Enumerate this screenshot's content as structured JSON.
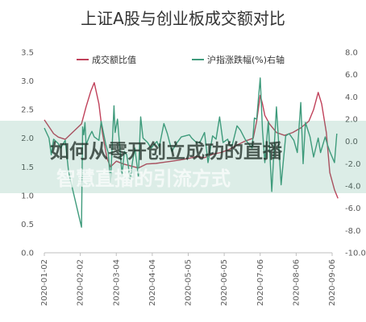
{
  "chart_data": {
    "type": "line",
    "title": "上证A股与创业板成交额对比",
    "xlabel": "",
    "ylabel": "",
    "x_ticks": [
      "2020-01-02",
      "2020-02-02",
      "2020-03-04",
      "2020-04-04",
      "2020-05-05",
      "2020-06-05",
      "2020-07-06",
      "2020-08-06",
      "2020-09-06"
    ],
    "y_left": {
      "lim": [
        0.0,
        3.5
      ],
      "ticks": [
        "0.0",
        "0.5",
        "1.0",
        "1.5",
        "2.0",
        "2.5",
        "3.0",
        "3.5"
      ]
    },
    "y_right": {
      "lim": [
        -10.0,
        8.0
      ],
      "ticks": [
        "-10.0",
        "-8.0",
        "-6.0",
        "-4.0",
        "-2.0",
        "0.0",
        "2.0",
        "4.0",
        "6.0",
        "8.0"
      ]
    },
    "grid": false,
    "legend_position": "top",
    "series": [
      {
        "name": "成交额比值",
        "axis": "left",
        "color": "#c0415a",
        "points": [
          [
            "2020-01-02",
            2.32
          ],
          [
            "2020-01-06",
            2.2
          ],
          [
            "2020-01-10",
            2.08
          ],
          [
            "2020-01-14",
            2.02
          ],
          [
            "2020-01-20",
            1.98
          ],
          [
            "2020-02-03",
            2.25
          ],
          [
            "2020-02-07",
            2.55
          ],
          [
            "2020-02-11",
            2.82
          ],
          [
            "2020-02-14",
            2.97
          ],
          [
            "2020-02-18",
            2.6
          ],
          [
            "2020-02-21",
            2.1
          ],
          [
            "2020-02-25",
            1.65
          ],
          [
            "2020-02-28",
            1.5
          ],
          [
            "2020-03-04",
            1.6
          ],
          [
            "2020-03-10",
            1.55
          ],
          [
            "2020-03-16",
            1.52
          ],
          [
            "2020-03-23",
            1.48
          ],
          [
            "2020-03-30",
            1.55
          ],
          [
            "2020-04-07",
            1.56
          ],
          [
            "2020-04-14",
            1.58
          ],
          [
            "2020-04-21",
            1.6
          ],
          [
            "2020-04-28",
            1.62
          ],
          [
            "2020-05-06",
            1.65
          ],
          [
            "2020-05-12",
            1.68
          ],
          [
            "2020-05-19",
            1.66
          ],
          [
            "2020-05-26",
            1.72
          ],
          [
            "2020-06-02",
            1.75
          ],
          [
            "2020-06-09",
            1.8
          ],
          [
            "2020-06-16",
            1.88
          ],
          [
            "2020-06-23",
            1.95
          ],
          [
            "2020-06-30",
            2.0
          ],
          [
            "2020-07-03",
            2.3
          ],
          [
            "2020-07-06",
            2.75
          ],
          [
            "2020-07-08",
            2.6
          ],
          [
            "2020-07-10",
            2.4
          ],
          [
            "2020-07-14",
            2.25
          ],
          [
            "2020-07-20",
            2.1
          ],
          [
            "2020-07-27",
            2.05
          ],
          [
            "2020-08-03",
            2.1
          ],
          [
            "2020-08-10",
            2.18
          ],
          [
            "2020-08-17",
            2.3
          ],
          [
            "2020-08-21",
            2.5
          ],
          [
            "2020-08-25",
            2.8
          ],
          [
            "2020-08-28",
            2.6
          ],
          [
            "2020-09-01",
            2.1
          ],
          [
            "2020-09-04",
            1.4
          ],
          [
            "2020-09-08",
            1.1
          ],
          [
            "2020-09-11",
            0.95
          ]
        ]
      },
      {
        "name": "沪指涨跌幅(%)右轴",
        "axis": "right",
        "color": "#3f9b7c",
        "points": [
          [
            "2020-01-02",
            1.2
          ],
          [
            "2020-01-06",
            0.3
          ],
          [
            "2020-01-08",
            -1.2
          ],
          [
            "2020-01-10",
            0.2
          ],
          [
            "2020-01-14",
            -0.2
          ],
          [
            "2020-01-16",
            -0.6
          ],
          [
            "2020-01-20",
            0.1
          ],
          [
            "2020-01-23",
            -2.8
          ],
          [
            "2020-02-03",
            -7.7
          ],
          [
            "2020-02-04",
            1.3
          ],
          [
            "2020-02-05",
            0.6
          ],
          [
            "2020-02-06",
            1.7
          ],
          [
            "2020-02-07",
            -0.3
          ],
          [
            "2020-02-10",
            0.5
          ],
          [
            "2020-02-12",
            0.9
          ],
          [
            "2020-02-14",
            0.4
          ],
          [
            "2020-02-18",
            0.1
          ],
          [
            "2020-02-20",
            1.8
          ],
          [
            "2020-02-24",
            -0.3
          ],
          [
            "2020-02-26",
            -1.0
          ],
          [
            "2020-02-28",
            -3.7
          ],
          [
            "2020-03-02",
            3.2
          ],
          [
            "2020-03-03",
            0.8
          ],
          [
            "2020-03-05",
            2.0
          ],
          [
            "2020-03-09",
            -3.0
          ],
          [
            "2020-03-11",
            -0.9
          ],
          [
            "2020-03-13",
            -1.2
          ],
          [
            "2020-03-16",
            -3.4
          ],
          [
            "2020-03-18",
            -1.8
          ],
          [
            "2020-03-20",
            -0.6
          ],
          [
            "2020-03-23",
            -3.1
          ],
          [
            "2020-03-25",
            2.2
          ],
          [
            "2020-03-27",
            0.3
          ],
          [
            "2020-03-31",
            -0.1
          ],
          [
            "2020-04-03",
            -0.6
          ],
          [
            "2020-04-08",
            0.0
          ],
          [
            "2020-04-10",
            -0.5
          ],
          [
            "2020-04-14",
            1.6
          ],
          [
            "2020-04-17",
            0.7
          ],
          [
            "2020-04-21",
            -0.9
          ],
          [
            "2020-04-24",
            -0.3
          ],
          [
            "2020-04-29",
            0.4
          ],
          [
            "2020-05-06",
            0.6
          ],
          [
            "2020-05-08",
            0.3
          ],
          [
            "2020-05-12",
            -0.1
          ],
          [
            "2020-05-15",
            -0.1
          ],
          [
            "2020-05-19",
            0.8
          ],
          [
            "2020-05-22",
            -1.9
          ],
          [
            "2020-05-26",
            0.5
          ],
          [
            "2020-05-29",
            0.2
          ],
          [
            "2020-06-01",
            2.2
          ],
          [
            "2020-06-04",
            -0.1
          ],
          [
            "2020-06-08",
            0.2
          ],
          [
            "2020-06-10",
            -0.4
          ],
          [
            "2020-06-12",
            -0.3
          ],
          [
            "2020-06-16",
            1.4
          ],
          [
            "2020-06-19",
            1.0
          ],
          [
            "2020-06-23",
            0.2
          ],
          [
            "2020-06-29",
            -0.6
          ],
          [
            "2020-07-01",
            2.1
          ],
          [
            "2020-07-03",
            2.0
          ],
          [
            "2020-07-06",
            5.7
          ],
          [
            "2020-07-08",
            1.0
          ],
          [
            "2020-07-10",
            -1.9
          ],
          [
            "2020-07-13",
            1.8
          ],
          [
            "2020-07-16",
            -4.5
          ],
          [
            "2020-07-20",
            3.1
          ],
          [
            "2020-07-22",
            -0.3
          ],
          [
            "2020-07-24",
            -3.9
          ],
          [
            "2020-07-28",
            0.5
          ],
          [
            "2020-07-31",
            0.7
          ],
          [
            "2020-08-04",
            0.1
          ],
          [
            "2020-08-07",
            -1.0
          ],
          [
            "2020-08-10",
            3.5
          ],
          [
            "2020-08-12",
            -2.0
          ],
          [
            "2020-08-14",
            1.7
          ],
          [
            "2020-08-18",
            0.4
          ],
          [
            "2020-08-21",
            -1.4
          ],
          [
            "2020-08-25",
            0.3
          ],
          [
            "2020-08-27",
            -1.0
          ],
          [
            "2020-08-31",
            0.4
          ],
          [
            "2020-09-02",
            -0.3
          ],
          [
            "2020-09-04",
            -0.9
          ],
          [
            "2020-09-08",
            -1.9
          ],
          [
            "2020-09-10",
            0.7
          ]
        ]
      }
    ]
  },
  "watermark": {
    "line1": "如何从零开创立成功的直播",
    "line2": "智慧直播的引流方式"
  },
  "colors": {
    "axis": "#bfbfbf",
    "band": "#3f9b7c"
  }
}
